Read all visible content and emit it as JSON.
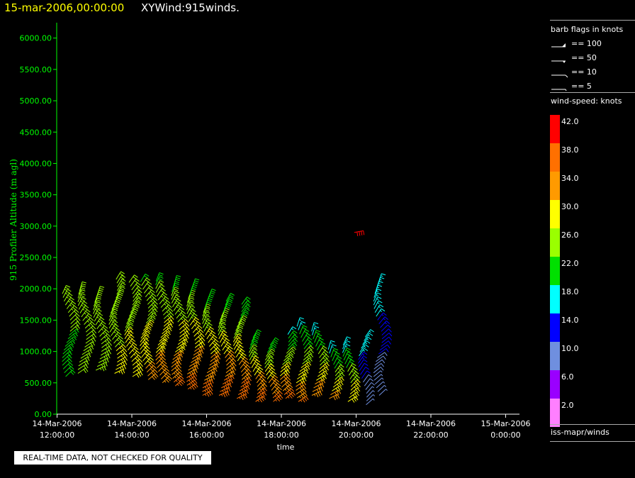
{
  "header": {
    "time": "15-mar-2006,00:00:00",
    "title": "XYWind:915winds."
  },
  "notice": "REAL-TIME DATA, NOT CHECKED FOR QUALITY",
  "colors": {
    "y_axis": "#00ff00",
    "time_text": "#ffff00",
    "background": "#000000"
  },
  "legend": {
    "barb_title": "barb flags in knots",
    "barbs": [
      "== 100",
      "== 50",
      "== 10",
      "== 5"
    ],
    "speed_title": "wind-speed: knots",
    "speed_scale": [
      {
        "label": "42.0",
        "color": "#ff0000"
      },
      {
        "label": "38.0",
        "color": "#ff7000"
      },
      {
        "label": "34.0",
        "color": "#ff9a00"
      },
      {
        "label": "30.0",
        "color": "#ffff00"
      },
      {
        "label": "26.0",
        "color": "#9aff00"
      },
      {
        "label": "22.0",
        "color": "#00e000"
      },
      {
        "label": "18.0",
        "color": "#00ffff"
      },
      {
        "label": "14.0",
        "color": "#0000ff"
      },
      {
        "label": "10.0",
        "color": "#6f8fdf"
      },
      {
        "label": "6.0",
        "color": "#9a00ff"
      },
      {
        "label": "2.0",
        "color": "#ff7fff"
      }
    ],
    "source": "iss-mapr/winds"
  },
  "chart_data": {
    "type": "scatter",
    "ylabel": "915 Profiler Altitude (m agl)",
    "xlabel": "time",
    "ylim": [
      0,
      6200
    ],
    "yticks": [
      "0.00",
      "500.00",
      "1000.00",
      "1500.00",
      "2000.00",
      "2500.00",
      "3000.00",
      "3500.00",
      "4000.00",
      "4500.00",
      "5000.00",
      "5500.00",
      "6000.00"
    ],
    "xlim_hours": [
      11.99,
      24.37
    ],
    "xticks": [
      {
        "h": 12,
        "date": "14-Mar-2006",
        "time": "12:00:00"
      },
      {
        "h": 14,
        "date": "14-Mar-2006",
        "time": "14:00:00"
      },
      {
        "h": 16,
        "date": "14-Mar-2006",
        "time": "16:00:00"
      },
      {
        "h": 18,
        "date": "14-Mar-2006",
        "time": "18:00:00"
      },
      {
        "h": 20,
        "date": "14-Mar-2006",
        "time": "20:00:00"
      },
      {
        "h": 22,
        "date": "14-Mar-2006",
        "time": "22:00:00"
      },
      {
        "h": 24,
        "date": "15-Mar-2006",
        "time": "0:00:00"
      }
    ],
    "profiles": [
      {
        "time": "12:15",
        "h": 12.25,
        "min": 600,
        "max": 1950
      },
      {
        "time": "12:40",
        "h": 12.67,
        "min": 650,
        "max": 2000
      },
      {
        "time": "13:05",
        "h": 13.08,
        "min": 700,
        "max": 1950
      },
      {
        "time": "13:30",
        "h": 13.5,
        "min": 650,
        "max": 2150
      },
      {
        "time": "13:55",
        "h": 13.92,
        "min": 600,
        "max": 2100
      },
      {
        "time": "14:20",
        "h": 14.33,
        "min": 550,
        "max": 2150
      },
      {
        "time": "14:45",
        "h": 14.75,
        "min": 500,
        "max": 2150
      },
      {
        "time": "15:10",
        "h": 15.17,
        "min": 450,
        "max": 2100
      },
      {
        "time": "15:35",
        "h": 15.58,
        "min": 400,
        "max": 2050
      },
      {
        "time": "16:00",
        "h": 16.0,
        "min": 300,
        "max": 1900
      },
      {
        "time": "16:25",
        "h": 16.42,
        "min": 300,
        "max": 1850
      },
      {
        "time": "16:50",
        "h": 16.83,
        "min": 250,
        "max": 1800
      },
      {
        "time": "17:15",
        "h": 17.25,
        "min": 200,
        "max": 1250
      },
      {
        "time": "17:40",
        "h": 17.67,
        "min": 200,
        "max": 1150
      },
      {
        "time": "18:05",
        "h": 18.08,
        "min": 250,
        "max": 1300
      },
      {
        "time": "18:30",
        "h": 18.5,
        "min": 200,
        "max": 1400
      },
      {
        "time": "18:55",
        "h": 18.92,
        "min": 300,
        "max": 1350
      },
      {
        "time": "19:20",
        "h": 19.33,
        "min": 250,
        "max": 1050
      },
      {
        "time": "19:45",
        "h": 19.75,
        "min": 200,
        "max": 1150
      },
      {
        "time": "20:10",
        "h": 20.17,
        "min": 150,
        "max": 1250
      },
      {
        "time": "20:35",
        "h": 20.58,
        "min": 300,
        "max": 2150
      }
    ],
    "outlier": {
      "h": 19.95,
      "alt": 2900,
      "speed": 42
    }
  }
}
